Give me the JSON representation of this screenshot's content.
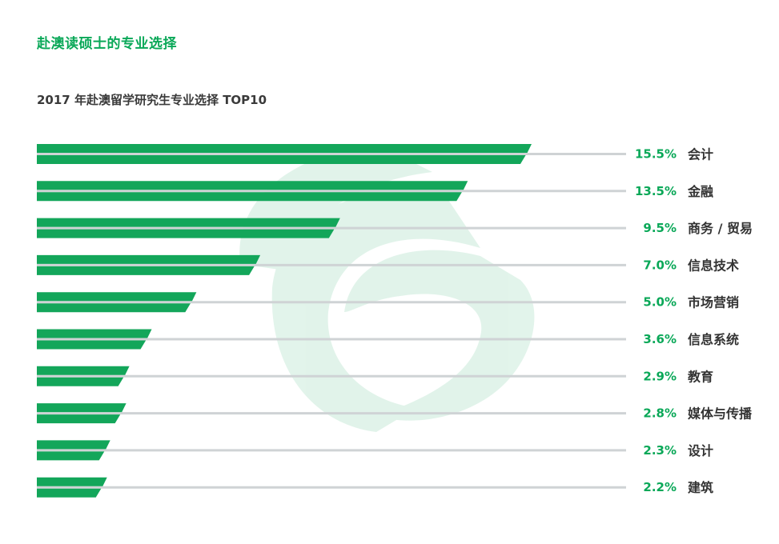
{
  "heading": "赴澳读硕士的专业选择",
  "chart_data": {
    "type": "bar",
    "orientation": "horizontal",
    "title": "2017 年赴澳留学研究生专业选择 TOP10",
    "categories": [
      "会计",
      "金融",
      "商务 / 贸易",
      "信息技术",
      "市场营销",
      "信息系统",
      "教育",
      "媒体与传播",
      "设计",
      "建筑"
    ],
    "values": [
      15.5,
      13.5,
      9.5,
      7.0,
      5.0,
      3.6,
      2.9,
      2.8,
      2.3,
      2.2
    ],
    "value_labels": [
      "15.5%",
      "13.5%",
      "9.5%",
      "7.0%",
      "5.0%",
      "3.6%",
      "2.9%",
      "2.8%",
      "2.3%",
      "2.2%"
    ],
    "unit": "%",
    "xlim": [
      0,
      17
    ],
    "bar_color": "#13a65a",
    "track_color": "#cfd3d5",
    "accent_text_color": "#0aa858",
    "grid": false,
    "legend": "none"
  }
}
